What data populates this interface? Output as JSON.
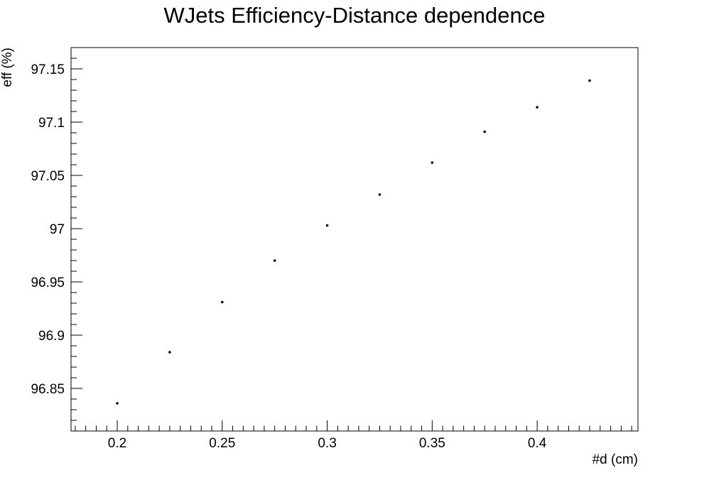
{
  "chart_data": {
    "type": "scatter",
    "title": "WJets Efficiency-Distance dependence",
    "xlabel": "#d (cm)",
    "ylabel": "eff (%)",
    "xlim": [
      0.178,
      0.448
    ],
    "ylim": [
      96.81,
      97.17
    ],
    "x_ticks": [
      0.2,
      0.25,
      0.3,
      0.35,
      0.4
    ],
    "x_tick_labels": [
      "0.2",
      "0.25",
      "0.3",
      "0.35",
      "0.4"
    ],
    "x_minor_step": 0.005,
    "y_ticks": [
      96.85,
      96.9,
      96.95,
      97.0,
      97.05,
      97.1,
      97.15
    ],
    "y_tick_labels": [
      "96.85",
      "96.9",
      "96.95",
      "97",
      "97.05",
      "97.1",
      "97.15"
    ],
    "y_minor_step": 0.01,
    "grid": false,
    "points": [
      {
        "x": 0.2,
        "y": 96.836
      },
      {
        "x": 0.225,
        "y": 96.884
      },
      {
        "x": 0.25,
        "y": 96.931
      },
      {
        "x": 0.275,
        "y": 96.97
      },
      {
        "x": 0.3,
        "y": 97.003
      },
      {
        "x": 0.325,
        "y": 97.032
      },
      {
        "x": 0.35,
        "y": 97.062
      },
      {
        "x": 0.375,
        "y": 97.091
      },
      {
        "x": 0.4,
        "y": 97.114
      },
      {
        "x": 0.425,
        "y": 97.139
      }
    ]
  }
}
